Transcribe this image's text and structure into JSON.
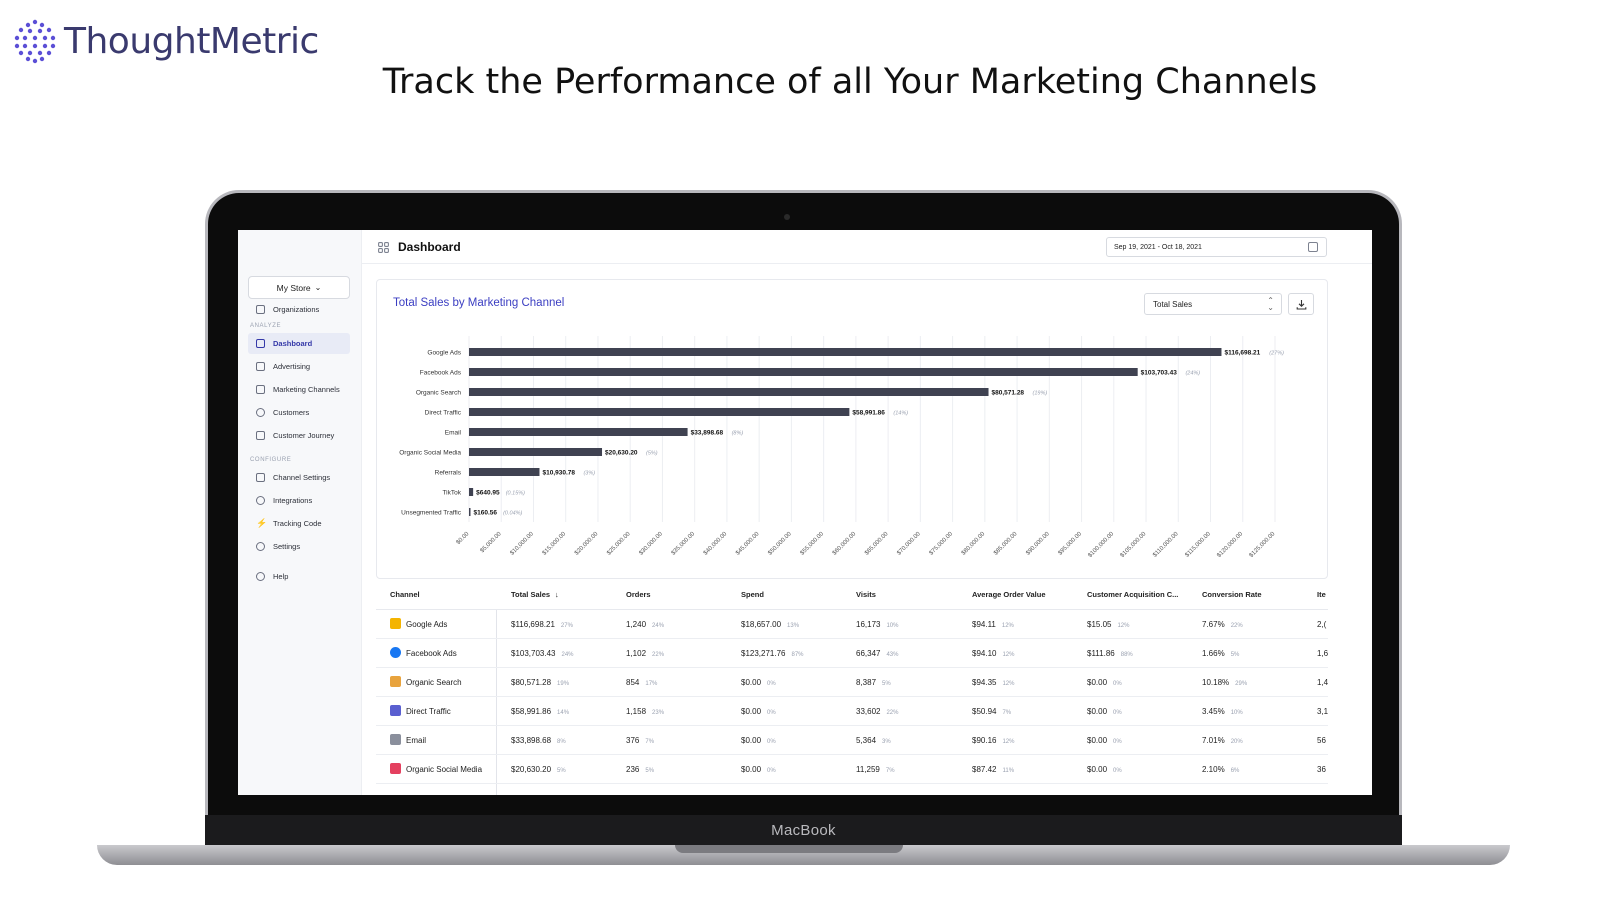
{
  "brand": {
    "name": "ThoughtMetric"
  },
  "headline": "Track the Performance of all Your Marketing Channels",
  "device_label": "MacBook",
  "sidebar": {
    "store": "My Store",
    "top_items": [
      {
        "label": "Organizations",
        "icon": "building-icon"
      }
    ],
    "sections": [
      {
        "title": "ANALYZE",
        "items": [
          {
            "label": "Dashboard",
            "icon": "grid-icon",
            "active": true
          },
          {
            "label": "Advertising",
            "icon": "image-icon"
          },
          {
            "label": "Marketing Channels",
            "icon": "bar-chart-icon"
          },
          {
            "label": "Customers",
            "icon": "users-icon"
          },
          {
            "label": "Customer Journey",
            "icon": "route-icon"
          }
        ]
      },
      {
        "title": "CONFIGURE",
        "items": [
          {
            "label": "Channel Settings",
            "icon": "bar-chart-icon"
          },
          {
            "label": "Integrations",
            "icon": "plus-circle-icon"
          },
          {
            "label": "Tracking Code",
            "icon": "bolt-icon"
          },
          {
            "label": "Settings",
            "icon": "gear-icon"
          }
        ]
      }
    ],
    "help": "Help"
  },
  "topbar": {
    "title": "Dashboard",
    "date_range": "Sep 19, 2021 - Oct 18, 2021"
  },
  "chart_card": {
    "title": "Total Sales by Marketing Channel",
    "metric": "Total Sales"
  },
  "chart_data": {
    "type": "bar",
    "orientation": "horizontal",
    "title": "Total Sales by Marketing Channel",
    "categories": [
      "Google Ads",
      "Facebook Ads",
      "Organic Search",
      "Direct Traffic",
      "Email",
      "Organic Social Media",
      "Referrals",
      "TikTok",
      "Unsegmented Traffic"
    ],
    "values": [
      116698.21,
      103703.43,
      80571.28,
      58991.86,
      33898.68,
      20630.2,
      10930.78,
      640.95,
      160.56
    ],
    "value_labels": [
      "$116,698.21",
      "$103,703.43",
      "$80,571.28",
      "$58,991.86",
      "$33,898.68",
      "$20,630.20",
      "$10,930.78",
      "$640.95",
      "$160.56"
    ],
    "share_labels": [
      "(27%)",
      "(24%)",
      "(19%)",
      "(14%)",
      "(8%)",
      "(5%)",
      "(3%)",
      "(0.15%)",
      "(0.04%)"
    ],
    "xlim": [
      0,
      125000
    ],
    "x_ticks": [
      "$0.00",
      "$5,000.00",
      "$10,000.00",
      "$15,000.00",
      "$20,000.00",
      "$25,000.00",
      "$30,000.00",
      "$35,000.00",
      "$40,000.00",
      "$45,000.00",
      "$50,000.00",
      "$55,000.00",
      "$60,000.00",
      "$65,000.00",
      "$70,000.00",
      "$75,000.00",
      "$80,000.00",
      "$85,000.00",
      "$90,000.00",
      "$95,000.00",
      "$100,000.00",
      "$105,000.00",
      "$110,000.00",
      "$115,000.00",
      "$120,000.00",
      "$125,000.00"
    ],
    "grid": true,
    "bar_color": "#3f4251"
  },
  "table": {
    "headers": [
      "Channel",
      "Total Sales",
      "Orders",
      "Spend",
      "Visits",
      "Average Order Value",
      "Customer Acquisition C...",
      "Conversion Rate",
      "Ite"
    ],
    "sort_indicator": "↓",
    "rows": [
      {
        "channel": "Google Ads",
        "icon": "google-ads-icon",
        "color": "#f4b400",
        "cells": [
          [
            "$116,698.21",
            "27%"
          ],
          [
            "1,240",
            "24%"
          ],
          [
            "$18,657.00",
            "13%"
          ],
          [
            "16,173",
            "10%"
          ],
          [
            "$94.11",
            "12%"
          ],
          [
            "$15.05",
            "12%"
          ],
          [
            "7.67%",
            "22%"
          ],
          [
            "2,(",
            ""
          ]
        ]
      },
      {
        "channel": "Facebook Ads",
        "icon": "facebook-icon",
        "color": "#1877f2",
        "cells": [
          [
            "$103,703.43",
            "24%"
          ],
          [
            "1,102",
            "22%"
          ],
          [
            "$123,271.76",
            "87%"
          ],
          [
            "66,347",
            "43%"
          ],
          [
            "$94.10",
            "12%"
          ],
          [
            "$111.86",
            "88%"
          ],
          [
            "1.66%",
            "5%"
          ],
          [
            "1,6",
            ""
          ]
        ]
      },
      {
        "channel": "Organic Search",
        "icon": "search-icon",
        "color": "#e8a33d",
        "cells": [
          [
            "$80,571.28",
            "19%"
          ],
          [
            "854",
            "17%"
          ],
          [
            "$0.00",
            "0%"
          ],
          [
            "8,387",
            "5%"
          ],
          [
            "$94.35",
            "12%"
          ],
          [
            "$0.00",
            "0%"
          ],
          [
            "10.18%",
            "29%"
          ],
          [
            "1,4",
            ""
          ]
        ]
      },
      {
        "channel": "Direct Traffic",
        "icon": "storefront-icon",
        "color": "#5a5fd0",
        "cells": [
          [
            "$58,991.86",
            "14%"
          ],
          [
            "1,158",
            "23%"
          ],
          [
            "$0.00",
            "0%"
          ],
          [
            "33,602",
            "22%"
          ],
          [
            "$50.94",
            "7%"
          ],
          [
            "$0.00",
            "0%"
          ],
          [
            "3.45%",
            "10%"
          ],
          [
            "3,1",
            ""
          ]
        ]
      },
      {
        "channel": "Email",
        "icon": "mail-icon",
        "color": "#8a8f9c",
        "cells": [
          [
            "$33,898.68",
            "8%"
          ],
          [
            "376",
            "7%"
          ],
          [
            "$0.00",
            "0%"
          ],
          [
            "5,364",
            "3%"
          ],
          [
            "$90.16",
            "12%"
          ],
          [
            "$0.00",
            "0%"
          ],
          [
            "7.01%",
            "20%"
          ],
          [
            "56",
            ""
          ]
        ]
      },
      {
        "channel": "Organic Social Media",
        "icon": "social-icon",
        "color": "#e4405f",
        "cells": [
          [
            "$20,630.20",
            "5%"
          ],
          [
            "236",
            "5%"
          ],
          [
            "$0.00",
            "0%"
          ],
          [
            "11,259",
            "7%"
          ],
          [
            "$87.42",
            "11%"
          ],
          [
            "$0.00",
            "0%"
          ],
          [
            "2.10%",
            "6%"
          ],
          [
            "36",
            ""
          ]
        ]
      }
    ]
  }
}
